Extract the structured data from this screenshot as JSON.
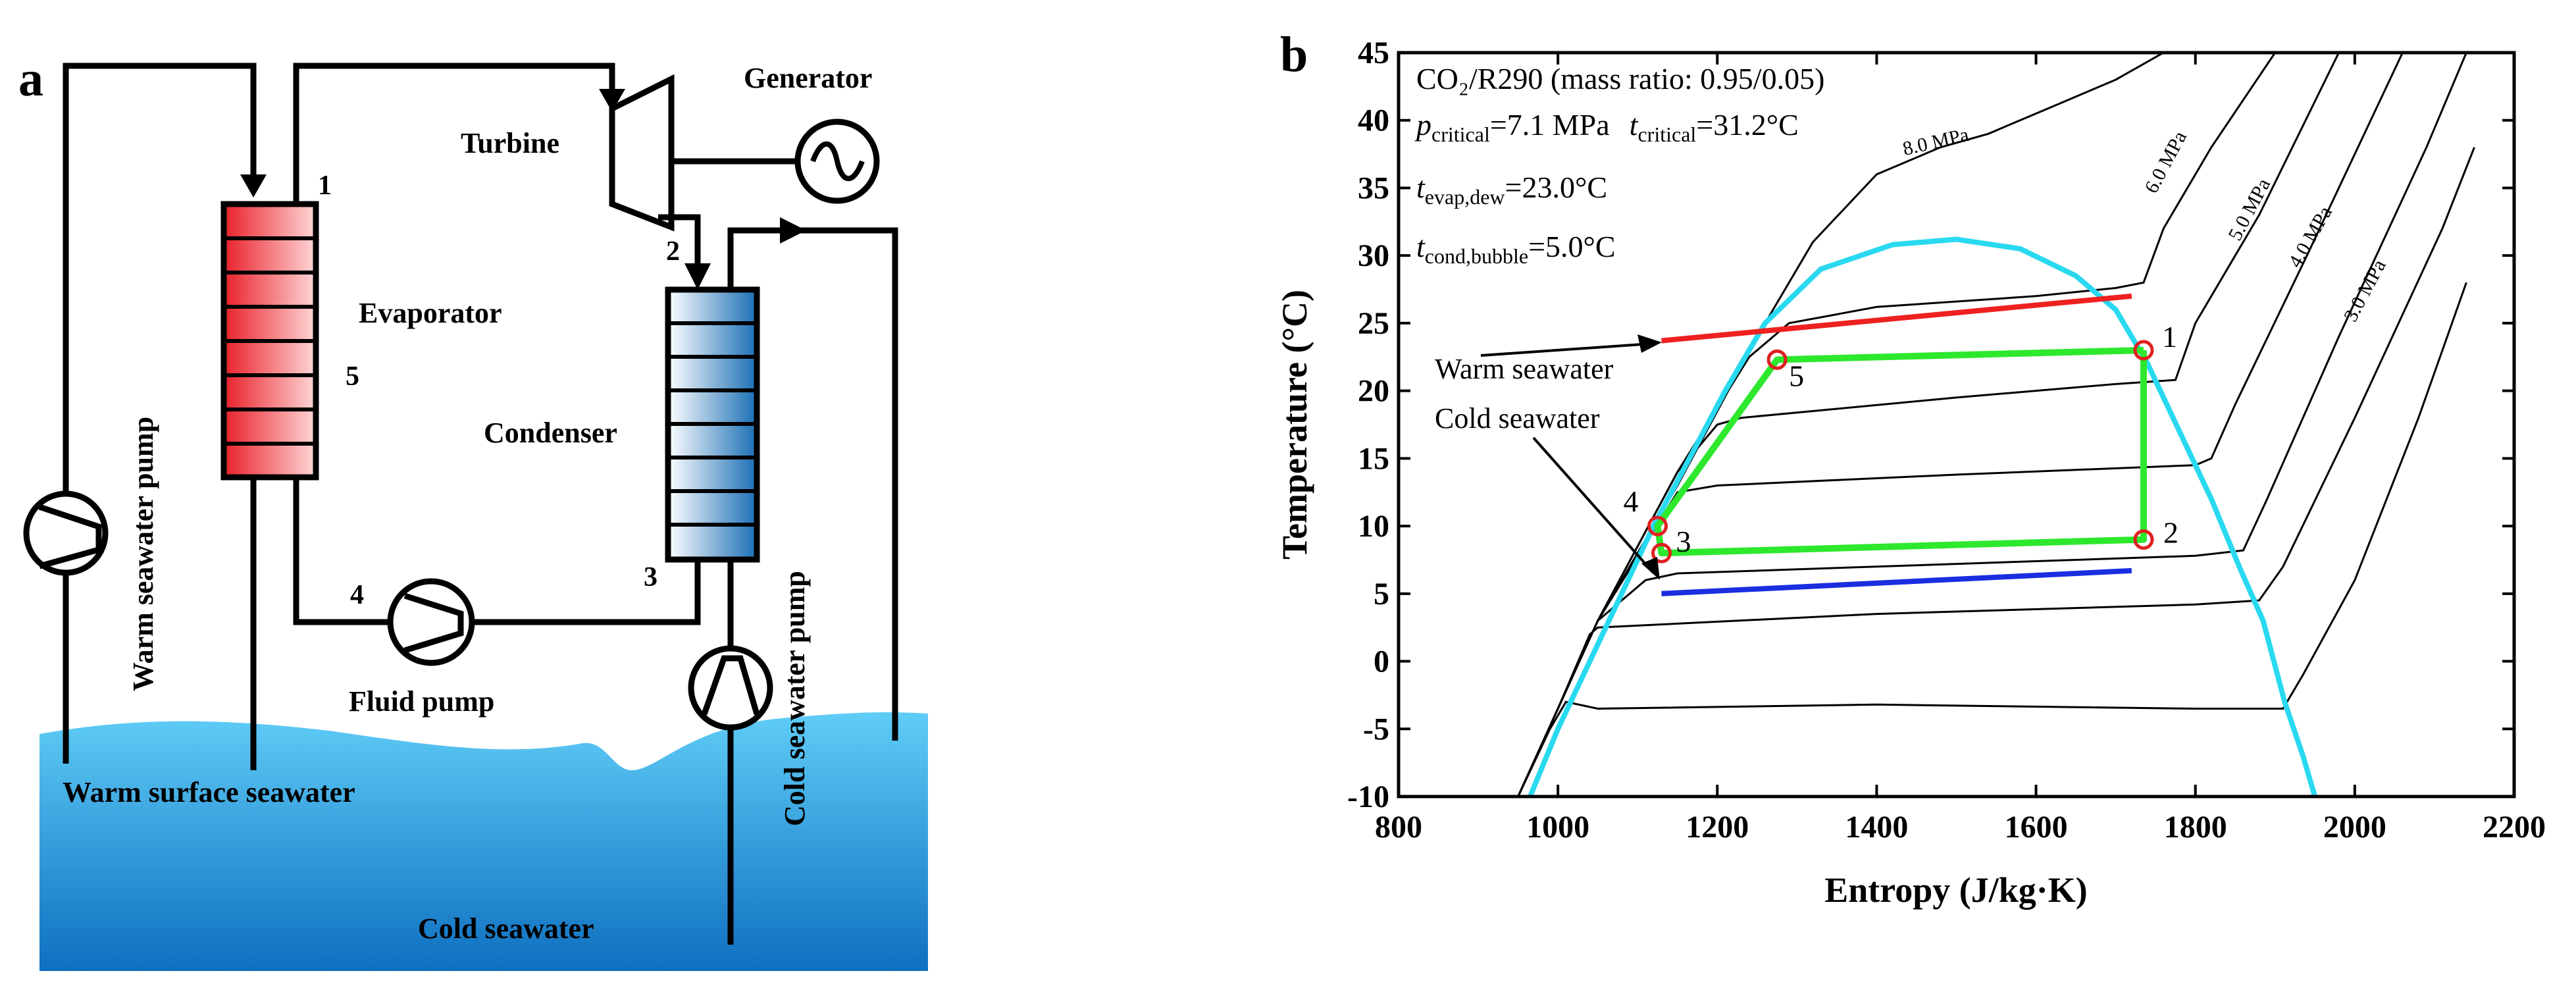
{
  "panel_a": {
    "letter": "a",
    "labels": {
      "generator": "Generator",
      "turbine": "Turbine",
      "evaporator": "Evaporator",
      "condenser": "Condenser",
      "fluid_pump": "Fluid pump",
      "warm_seawater_pump": "Warm seawater pump",
      "cold_seawater_pump": "Cold seawater pump",
      "warm_surface_seawater": "Warm surface seawater",
      "cold_seawater": "Cold seawater"
    },
    "state_points": [
      "1",
      "2",
      "3",
      "4",
      "5"
    ],
    "colors": {
      "evaporator": "#e8202a",
      "condenser": "#1a6fb5",
      "sea_top": "#55c8f5",
      "sea_bottom": "#0e6fc0"
    }
  },
  "panel_b": {
    "letter": "b",
    "info": {
      "line1": "CO₂/R290 (mass ratio: 0.95/0.05)",
      "p_sym": "p",
      "p_sub": "critical",
      "p_val": "=7.1 MPa",
      "t_sym": "t",
      "t_sub": "critical",
      "t_val": "=31.2°C",
      "tevap_sym": "t",
      "tevap_sub": "evap,dew",
      "tevap_val": "=23.0°C",
      "tcond_sym": "t",
      "tcond_sub": "cond,bubble",
      "tcond_val": "=5.0°C"
    },
    "annotations": {
      "warm": "Warm seawater",
      "cold": "Cold seawater"
    },
    "chart_data": {
      "type": "line",
      "xlabel": "Entropy (J/kg·K)",
      "ylabel": "Temperature (°C)",
      "xlim": [
        800,
        2200
      ],
      "ylim": [
        -10,
        45
      ],
      "xticks": [
        800,
        1000,
        1200,
        1400,
        1600,
        1800,
        2000,
        2200
      ],
      "yticks": [
        -10,
        -5,
        0,
        5,
        10,
        15,
        20,
        25,
        30,
        35,
        40,
        45
      ],
      "saturation_dome": {
        "color": "#29d9f0",
        "points": [
          [
            965,
            -10
          ],
          [
            1000,
            -5
          ],
          [
            1040,
            0
          ],
          [
            1080,
            5
          ],
          [
            1120,
            10
          ],
          [
            1165,
            15
          ],
          [
            1210,
            20
          ],
          [
            1260,
            25
          ],
          [
            1330,
            29
          ],
          [
            1420,
            30.8
          ],
          [
            1500,
            31.2
          ],
          [
            1580,
            30.5
          ],
          [
            1650,
            28.5
          ],
          [
            1700,
            26
          ],
          [
            1740,
            22
          ],
          [
            1780,
            17
          ],
          [
            1820,
            12
          ],
          [
            1855,
            7
          ],
          [
            1885,
            3
          ],
          [
            1912,
            -3
          ],
          [
            1935,
            -7
          ],
          [
            1950,
            -10
          ]
        ]
      },
      "isobars": [
        {
          "label": "8.0 MPa",
          "points": [
            [
              950,
              -10
            ],
            [
              1050,
              3
            ],
            [
              1150,
              13
            ],
            [
              1250,
              24
            ],
            [
              1320,
              31
            ],
            [
              1400,
              36
            ],
            [
              1480,
              38
            ],
            [
              1540,
              39
            ],
            [
              1620,
              41
            ],
            [
              1700,
              43
            ],
            [
              1760,
              45
            ]
          ]
        },
        {
          "label": "6.0 MPa",
          "points": [
            [
              950,
              -10
            ],
            [
              1050,
              3
            ],
            [
              1150,
              14
            ],
            [
              1240,
              22.5
            ],
            [
              1290,
              25
            ],
            [
              1400,
              26.2
            ],
            [
              1600,
              27
            ],
            [
              1700,
              27.6
            ],
            [
              1735,
              28
            ],
            [
              1760,
              32
            ],
            [
              1820,
              38
            ],
            [
              1900,
              45
            ]
          ]
        },
        {
          "label": "5.0 MPa",
          "points": [
            [
              950,
              -10
            ],
            [
              1050,
              3
            ],
            [
              1150,
              14
            ],
            [
              1200,
              17.5
            ],
            [
              1230,
              18
            ],
            [
              1500,
              19.5
            ],
            [
              1700,
              20.5
            ],
            [
              1775,
              20.8
            ],
            [
              1800,
              25
            ],
            [
              1880,
              33
            ],
            [
              1980,
              45
            ]
          ]
        },
        {
          "label": "4.0 MPa",
          "points": [
            [
              950,
              -10
            ],
            [
              1050,
              3
            ],
            [
              1150,
              12.5
            ],
            [
              1200,
              13
            ],
            [
              1500,
              13.8
            ],
            [
              1800,
              14.5
            ],
            [
              1820,
              15
            ],
            [
              1850,
              19
            ],
            [
              1940,
              30
            ],
            [
              2060,
              45
            ]
          ]
        },
        {
          "label": "3.0 MPa",
          "points": [
            [
              950,
              -10
            ],
            [
              1050,
              3
            ],
            [
              1110,
              6
            ],
            [
              1150,
              6.5
            ],
            [
              1500,
              7.2
            ],
            [
              1800,
              7.8
            ],
            [
              1860,
              8.2
            ],
            [
              1890,
              12
            ],
            [
              1980,
              24
            ],
            [
              2090,
              38
            ],
            [
              2140,
              45
            ]
          ]
        },
        {
          "label": "",
          "points": [
            [
              950,
              -10
            ],
            [
              1000,
              -3.5
            ],
            [
              1040,
              2
            ],
            [
              1050,
              2.5
            ],
            [
              1400,
              3.5
            ],
            [
              1800,
              4.2
            ],
            [
              1880,
              4.5
            ],
            [
              1910,
              7
            ],
            [
              2000,
              18
            ],
            [
              2110,
              32
            ],
            [
              2150,
              38
            ]
          ]
        },
        {
          "label": "",
          "points": [
            [
              950,
              -10
            ],
            [
              990,
              -5
            ],
            [
              1010,
              -3
            ],
            [
              1050,
              -3.5
            ],
            [
              1400,
              -3.2
            ],
            [
              1800,
              -3.5
            ],
            [
              1910,
              -3.5
            ],
            [
              1935,
              -1
            ],
            [
              2000,
              6
            ],
            [
              2080,
              18
            ],
            [
              2140,
              28
            ]
          ]
        }
      ],
      "cycle": {
        "color": "#2de82d",
        "points": [
          {
            "x": 1735,
            "y": 23
          },
          {
            "x": 1735,
            "y": 9
          },
          {
            "x": 1130,
            "y": 8
          },
          {
            "x": 1125,
            "y": 10
          },
          {
            "x": 1275,
            "y": 22.3
          },
          {
            "x": 1735,
            "y": 23
          }
        ],
        "state_labels": [
          {
            "label": "1",
            "x": 1735,
            "y": 23
          },
          {
            "label": "2",
            "x": 1735,
            "y": 9
          },
          {
            "label": "3",
            "x": 1130,
            "y": 8
          },
          {
            "label": "4",
            "x": 1125,
            "y": 10
          },
          {
            "label": "5",
            "x": 1275,
            "y": 22.3
          }
        ]
      },
      "warm_seawater_line": {
        "color": "#ee2020",
        "points": [
          [
            1130,
            23.7
          ],
          [
            1720,
            27
          ]
        ]
      },
      "cold_seawater_line": {
        "color": "#1a2ee0",
        "points": [
          [
            1130,
            5
          ],
          [
            1720,
            6.7
          ]
        ]
      }
    }
  }
}
